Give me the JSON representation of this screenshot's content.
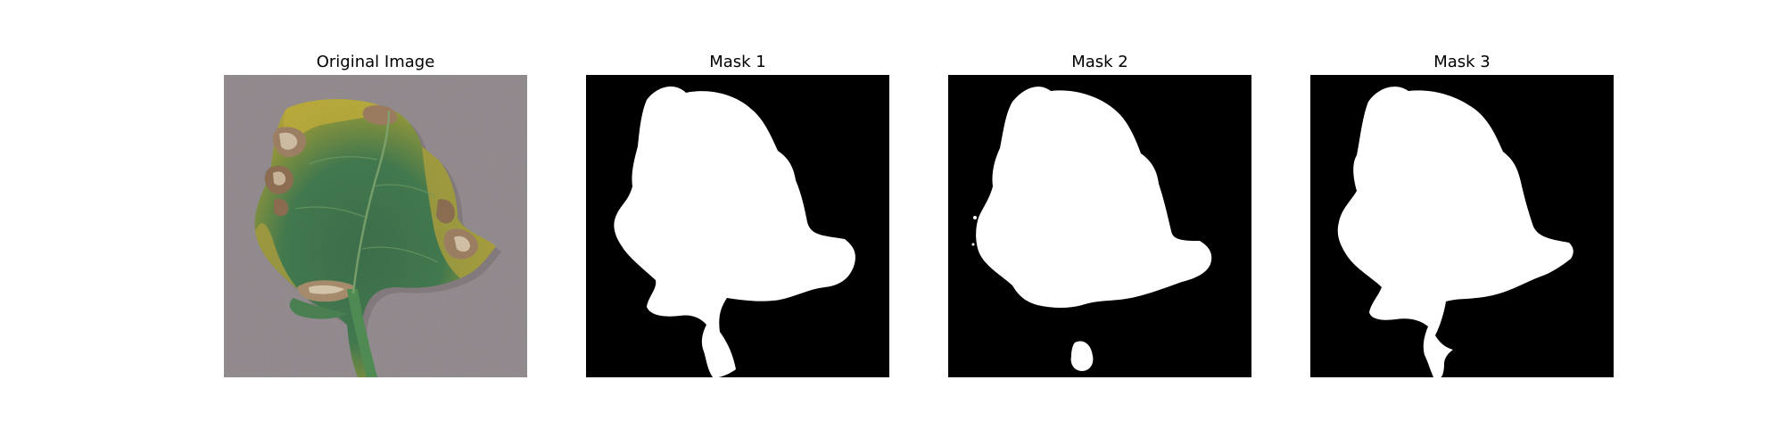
{
  "figure": {
    "panels": [
      {
        "title": "Original Image",
        "kind": "photo",
        "background": "#8d8589"
      },
      {
        "title": "Mask 1",
        "kind": "mask",
        "background": "#000000",
        "foreground": "#ffffff"
      },
      {
        "title": "Mask 2",
        "kind": "mask",
        "background": "#000000",
        "foreground": "#ffffff"
      },
      {
        "title": "Mask 3",
        "kind": "mask",
        "background": "#000000",
        "foreground": "#ffffff"
      }
    ]
  },
  "colors": {
    "leaf_green": "#3f7a4f",
    "leaf_yellow": "#b9a83a",
    "lesion_brown": "#8a6a4f",
    "lesion_tan": "#c8b59a",
    "stem_green": "#4f8a52"
  }
}
